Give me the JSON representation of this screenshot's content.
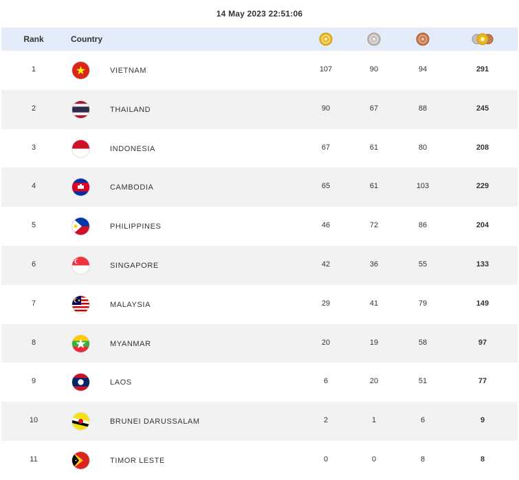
{
  "timestamp": "14 May 2023  22:51:06",
  "header": {
    "rank_label": "Rank",
    "country_label": "Country",
    "icons": [
      "gold-medal-icon",
      "silver-medal-icon",
      "bronze-medal-icon",
      "total-medals-icon"
    ]
  },
  "colors": {
    "header_bg": "#e3ecf8",
    "alt_row_bg": "#f2f2f2",
    "gold": "#e8b824",
    "silver": "#b9b3b0",
    "bronze": "#c87a4e"
  },
  "rows": [
    {
      "rank": "1",
      "country": "VIETNAM",
      "flag": "vietnam-flag-icon",
      "gold": "107",
      "silver": "90",
      "bronze": "94",
      "total": "291"
    },
    {
      "rank": "2",
      "country": "THAILAND",
      "flag": "thailand-flag-icon",
      "gold": "90",
      "silver": "67",
      "bronze": "88",
      "total": "245"
    },
    {
      "rank": "3",
      "country": "INDONESIA",
      "flag": "indonesia-flag-icon",
      "gold": "67",
      "silver": "61",
      "bronze": "80",
      "total": "208"
    },
    {
      "rank": "4",
      "country": "CAMBODIA",
      "flag": "cambodia-flag-icon",
      "gold": "65",
      "silver": "61",
      "bronze": "103",
      "total": "229"
    },
    {
      "rank": "5",
      "country": "PHILIPPINES",
      "flag": "philippines-flag-icon",
      "gold": "46",
      "silver": "72",
      "bronze": "86",
      "total": "204"
    },
    {
      "rank": "6",
      "country": "SINGAPORE",
      "flag": "singapore-flag-icon",
      "gold": "42",
      "silver": "36",
      "bronze": "55",
      "total": "133"
    },
    {
      "rank": "7",
      "country": "MALAYSIA",
      "flag": "malaysia-flag-icon",
      "gold": "29",
      "silver": "41",
      "bronze": "79",
      "total": "149"
    },
    {
      "rank": "8",
      "country": "MYANMAR",
      "flag": "myanmar-flag-icon",
      "gold": "20",
      "silver": "19",
      "bronze": "58",
      "total": "97"
    },
    {
      "rank": "9",
      "country": "LAOS",
      "flag": "laos-flag-icon",
      "gold": "6",
      "silver": "20",
      "bronze": "51",
      "total": "77"
    },
    {
      "rank": "10",
      "country": "BRUNEI DARUSSALAM",
      "flag": "brunei-flag-icon",
      "gold": "2",
      "silver": "1",
      "bronze": "6",
      "total": "9"
    },
    {
      "rank": "11",
      "country": "TIMOR LESTE",
      "flag": "timor-leste-flag-icon",
      "gold": "0",
      "silver": "0",
      "bronze": "8",
      "total": "8"
    }
  ]
}
